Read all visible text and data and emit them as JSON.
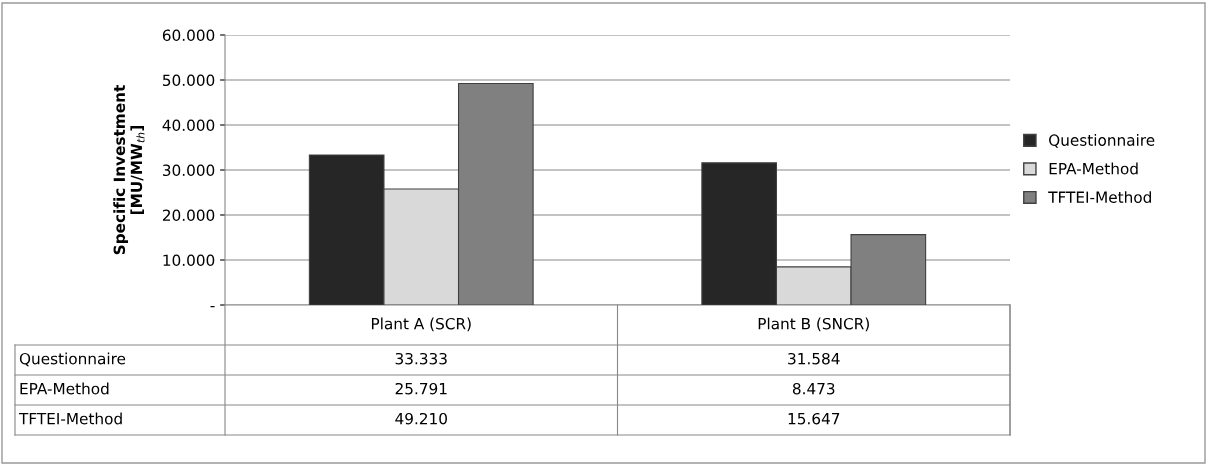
{
  "chart_data": {
    "type": "bar",
    "ylabel": "Specific Investment\n[MU/MW$_{th}$]",
    "categories": [
      "Plant A (SCR)",
      "Plant B (SNCR)"
    ],
    "series": [
      {
        "name": "Questionnaire",
        "color": "#262626",
        "values": [
          33333,
          31584
        ],
        "value_labels": [
          "33.333",
          "31.584"
        ]
      },
      {
        "name": "EPA-Method",
        "color": "#d9d9d9",
        "values": [
          25791,
          8473
        ],
        "value_labels": [
          "25.791",
          "8.473"
        ]
      },
      {
        "name": "TFTEI-Method",
        "color": "#808080",
        "values": [
          49210,
          15647
        ],
        "value_labels": [
          "49.210",
          "15.647"
        ]
      }
    ],
    "ylim": [
      0,
      60000
    ],
    "yticks": [
      {
        "value": 0,
        "label": "-"
      },
      {
        "value": 10000,
        "label": "10.000"
      },
      {
        "value": 20000,
        "label": "20.000"
      },
      {
        "value": 30000,
        "label": "30.000"
      },
      {
        "value": 40000,
        "label": "40.000"
      },
      {
        "value": 50000,
        "label": "50.000"
      },
      {
        "value": 60000,
        "label": "60.000"
      }
    ],
    "grid": "y",
    "legend": "right"
  }
}
